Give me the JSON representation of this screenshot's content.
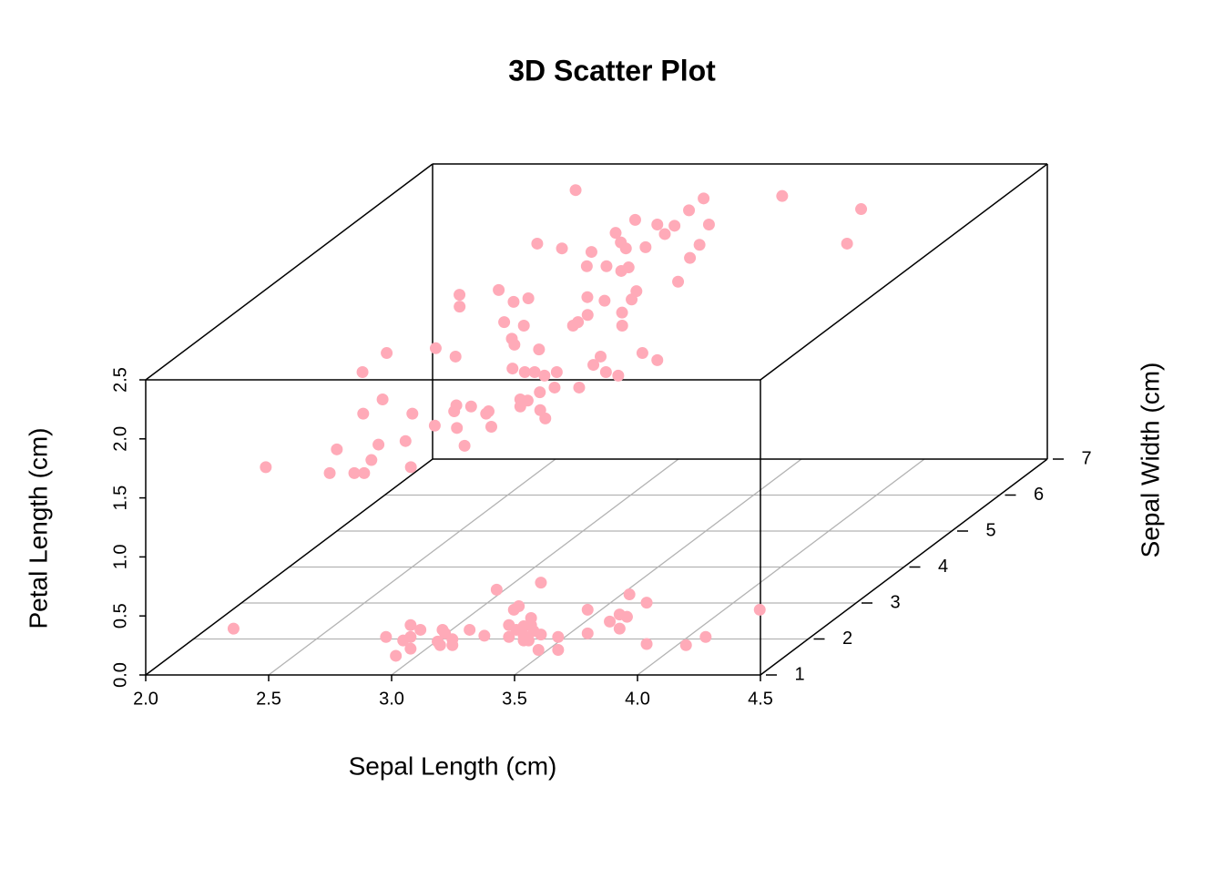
{
  "chart_data": {
    "type": "scatter3d",
    "title": "3D Scatter Plot",
    "xlabel": "Sepal Length (cm)",
    "ylabel": "Sepal Width (cm)",
    "zlabel": "Petal Length (cm)",
    "color": "#ffaab8",
    "grid": true,
    "xlim": [
      2,
      4.5
    ],
    "xticks": [
      {
        "value": 2,
        "label": "2.0"
      },
      2.5,
      {
        "value": 3,
        "label": "3.0"
      },
      3.5,
      {
        "value": 4,
        "label": "4.0"
      },
      4.5
    ],
    "ylim": [
      1,
      7
    ],
    "yticks": [
      1,
      2,
      3,
      4,
      5,
      6,
      7
    ],
    "zlim": [
      0,
      2.5
    ],
    "zticks": [
      {
        "value": 0,
        "label": "0.0"
      },
      0.5,
      {
        "value": 1,
        "label": "1.0"
      },
      1.5,
      {
        "value": 2,
        "label": "2.0"
      },
      2.5
    ],
    "x": [
      3.33,
      3.51,
      3.42,
      3.4,
      3.7,
      3.87,
      3.94,
      4.4,
      2.26,
      2.88,
      2.98,
      3.02,
      2.98,
      2.95,
      3.11,
      3.12,
      3.09,
      3.15,
      3.15,
      3.22,
      3.28,
      3.38,
      3.38,
      3.41,
      3.44,
      3.47,
      3.47,
      3.48,
      3.44,
      3.44,
      3.51,
      3.46,
      3.58,
      3.7,
      3.79,
      3.83,
      3.86,
      3.83,
      3.94,
      4.1,
      4.18,
      2.92,
      2.98,
      3.1,
      3.5,
      3.58,
      2.64,
      3.48,
      3.84,
      3.18,
      3.14,
      2.96,
      3.05,
      3.12,
      3.26,
      2.9,
      3.1,
      2.62,
      2.74,
      2.86,
      2.96,
      3.0,
      3.08,
      3.28,
      3.88,
      2.88,
      2.96,
      3.02,
      3.05,
      3.28,
      2.44,
      2.58,
      2.46,
      2.66,
      2.72,
      2.96,
      3.03,
      3.14,
      3.14,
      3.29,
      2.68,
      2.76,
      2.96,
      2.98,
      3.0,
      3.14,
      3.16,
      2.75,
      2.78,
      2.88,
      2.46,
      2.28,
      2.56,
      3.15,
      3.14,
      3.32,
      3.4,
      2.85,
      2.9,
      2.94,
      2.98,
      3.03,
      3.23,
      3.28,
      2.24,
      3.0,
      3.06,
      2.94,
      2.94,
      3.16,
      2.97,
      2.74,
      2.68,
      2.71,
      2.85,
      2.84,
      3.06,
      3.1,
      2.38,
      2.34,
      2.54,
      2.67,
      2.76,
      2.9,
      2.59,
      2.83,
      2.48,
      2.33,
      2.49,
      2.08,
      2.34,
      2.44,
      2.48,
      2.67
    ],
    "y": [
      1.5,
      1.5,
      1.5,
      1.5,
      1.5,
      1.5,
      1.5,
      1.5,
      1.5,
      1.5,
      1.5,
      1.5,
      1.5,
      1.5,
      1.5,
      1.5,
      1.5,
      1.5,
      1.5,
      1.5,
      1.5,
      1.5,
      1.5,
      1.5,
      1.5,
      1.5,
      1.5,
      1.5,
      1.5,
      1.5,
      1.5,
      1.5,
      1.5,
      1.5,
      1.5,
      1.5,
      1.5,
      1.5,
      1.5,
      1.5,
      1.5,
      1.5,
      1.5,
      1.5,
      1.5,
      1.5,
      6.7,
      6.7,
      6.5,
      6.6,
      6.5,
      6.3,
      6.3,
      6.3,
      6.3,
      6.2,
      6.2,
      6.0,
      5.9,
      5.9,
      6.0,
      5.9,
      5.9,
      6.0,
      6.0,
      5.7,
      5.7,
      5.7,
      5.7,
      5.8,
      5.3,
      5.4,
      5.2,
      5.3,
      5.3,
      5.3,
      5.3,
      5.4,
      5.3,
      5.5,
      5.0,
      5.0,
      5.0,
      5.0,
      5.1,
      5.1,
      5.0,
      4.8,
      4.7,
      4.7,
      4.7,
      4.6,
      4.6,
      4.6,
      4.5,
      4.6,
      4.5,
      4.3,
      4.3,
      4.3,
      4.3,
      4.3,
      4.3,
      4.3,
      4.3,
      4.1,
      4.1,
      4.0,
      4.0,
      4.1,
      4.0,
      4.0,
      4.0,
      3.8,
      3.8,
      3.8,
      3.8,
      3.7,
      4.0,
      3.8,
      3.8,
      3.6,
      3.6,
      3.6,
      3.4,
      3.4,
      3.4,
      3.3,
      3.2,
      3.1,
      3.1,
      3.1,
      3.1,
      3.1
    ],
    "z": [
      0.57,
      0.63,
      0.43,
      0.4,
      0.4,
      0.53,
      0.46,
      0.4,
      0.24,
      0.17,
      0.27,
      0.23,
      0.17,
      0.14,
      0.23,
      0.2,
      0.13,
      0.15,
      0.1,
      0.23,
      0.18,
      0.27,
      0.17,
      0.23,
      0.26,
      0.33,
      0.27,
      0.22,
      0.18,
      0.14,
      0.19,
      0.14,
      0.17,
      0.2,
      0.3,
      0.24,
      0.34,
      0.36,
      0.11,
      0.1,
      0.17,
      0.01,
      0.07,
      0.1,
      0.06,
      0.06,
      2.37,
      2.32,
      2.27,
      2.33,
      2.26,
      2.24,
      2.2,
      2.19,
      2.2,
      2.16,
      2.15,
      2.13,
      2.12,
      2.09,
      2.14,
      2.12,
      2.13,
      2.12,
      2.13,
      2.03,
      2.03,
      1.99,
      2.02,
      2.07,
      1.91,
      1.92,
      1.84,
      1.85,
      1.88,
      1.89,
      1.86,
      1.91,
      1.87,
      1.96,
      1.77,
      1.74,
      1.74,
      1.77,
      1.8,
      1.82,
      1.74,
      1.69,
      1.67,
      1.63,
      1.64,
      1.63,
      1.6,
      1.6,
      1.56,
      1.63,
      1.6,
      1.59,
      1.56,
      1.56,
      1.53,
      1.56,
      1.56,
      1.53,
      1.56,
      1.45,
      1.49,
      1.42,
      1.36,
      1.49,
      1.41,
      1.36,
      1.37,
      1.38,
      1.38,
      1.36,
      1.39,
      1.35,
      1.42,
      1.36,
      1.36,
      1.32,
      1.3,
      1.31,
      1.25,
      1.21,
      1.22,
      1.21,
      1.15,
      1.12,
      1.07,
      1.07,
      1.07,
      1.12
    ]
  }
}
